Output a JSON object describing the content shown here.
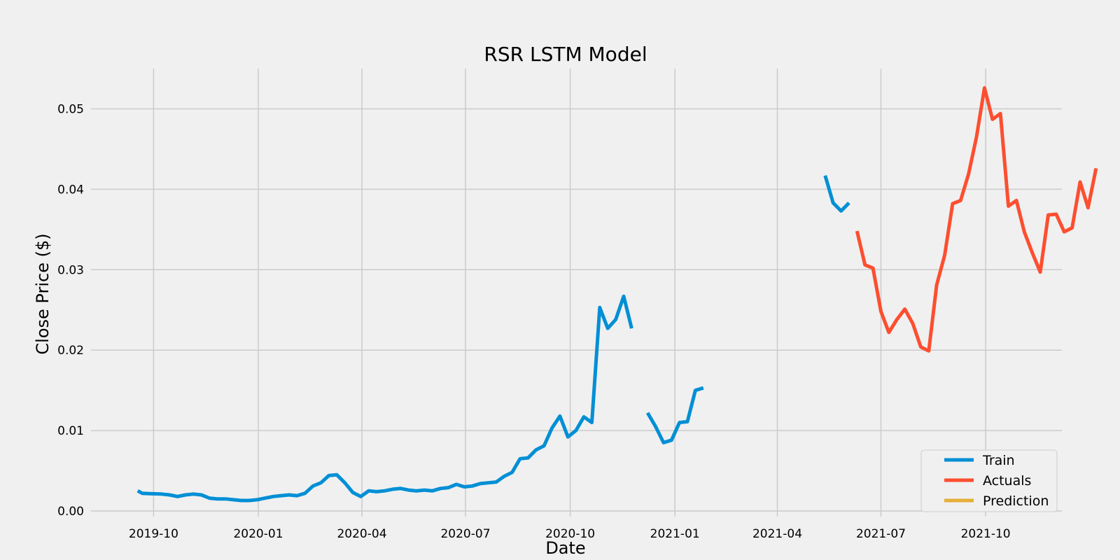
{
  "chart_data": {
    "type": "line",
    "title": "RSR LSTM Model",
    "xlabel": "Date",
    "ylabel": "Close Price ($)",
    "xlim": [
      "2019-08-07",
      "2021-12-07"
    ],
    "ylim": [
      -0.0007,
      0.055
    ],
    "x_ticks": [
      "2019-10-01",
      "2020-01-01",
      "2020-04-01",
      "2020-07-01",
      "2020-10-01",
      "2021-01-01",
      "2021-04-01",
      "2021-07-01",
      "2021-10-01"
    ],
    "x_tick_labels": [
      "2019-10",
      "2020-01",
      "2020-04",
      "2020-07",
      "2020-10",
      "2021-01",
      "2021-04",
      "2021-07",
      "2021-10"
    ],
    "y_ticks": [
      0.0,
      0.01,
      0.02,
      0.03,
      0.04,
      0.05
    ],
    "y_tick_labels": [
      "0.00",
      "0.01",
      "0.02",
      "0.03",
      "0.04",
      "0.05"
    ],
    "grid": true,
    "legend_position": "bottom-right",
    "series": [
      {
        "name": "Train",
        "color": "#008fd5",
        "segments": [
          [
            [
              "2019-09-17",
              0.0025
            ],
            [
              "2019-09-21",
              0.0022
            ],
            [
              "2019-09-28",
              0.00215
            ],
            [
              "2019-10-08",
              0.0021
            ],
            [
              "2019-10-15",
              0.002
            ],
            [
              "2019-10-22",
              0.0018
            ],
            [
              "2019-10-29",
              0.002
            ],
            [
              "2019-11-05",
              0.0021
            ],
            [
              "2019-11-12",
              0.002
            ],
            [
              "2019-11-19",
              0.0016
            ],
            [
              "2019-11-26",
              0.0015
            ],
            [
              "2019-12-03",
              0.0015
            ],
            [
              "2019-12-10",
              0.0014
            ],
            [
              "2019-12-17",
              0.0013
            ],
            [
              "2019-12-24",
              0.0013
            ],
            [
              "2019-12-31",
              0.0014
            ],
            [
              "2020-01-07",
              0.0016
            ],
            [
              "2020-01-14",
              0.0018
            ],
            [
              "2020-01-21",
              0.0019
            ],
            [
              "2020-01-28",
              0.002
            ],
            [
              "2020-02-04",
              0.0019
            ],
            [
              "2020-02-11",
              0.0022
            ],
            [
              "2020-02-18",
              0.0031
            ],
            [
              "2020-02-25",
              0.0035
            ],
            [
              "2020-03-03",
              0.0044
            ],
            [
              "2020-03-10",
              0.0045
            ],
            [
              "2020-03-17",
              0.0035
            ],
            [
              "2020-03-24",
              0.0023
            ],
            [
              "2020-03-31",
              0.0018
            ],
            [
              "2020-04-07",
              0.0025
            ],
            [
              "2020-04-14",
              0.0024
            ],
            [
              "2020-04-21",
              0.0025
            ],
            [
              "2020-04-28",
              0.0027
            ],
            [
              "2020-05-05",
              0.0028
            ],
            [
              "2020-05-12",
              0.0026
            ],
            [
              "2020-05-19",
              0.0025
            ],
            [
              "2020-05-26",
              0.0026
            ],
            [
              "2020-06-02",
              0.0025
            ],
            [
              "2020-06-09",
              0.0028
            ],
            [
              "2020-06-16",
              0.0029
            ],
            [
              "2020-06-23",
              0.0033
            ],
            [
              "2020-06-30",
              0.003
            ],
            [
              "2020-07-07",
              0.0031
            ],
            [
              "2020-07-14",
              0.0034
            ],
            [
              "2020-07-21",
              0.0035
            ],
            [
              "2020-07-28",
              0.0036
            ],
            [
              "2020-08-04",
              0.0043
            ],
            [
              "2020-08-11",
              0.0048
            ],
            [
              "2020-08-18",
              0.0065
            ],
            [
              "2020-08-25",
              0.0066
            ],
            [
              "2020-09-01",
              0.0076
            ],
            [
              "2020-09-08",
              0.0081
            ],
            [
              "2020-09-15",
              0.0103
            ],
            [
              "2020-09-22",
              0.0118
            ],
            [
              "2020-09-29",
              0.0092
            ],
            [
              "2020-10-06",
              0.01
            ],
            [
              "2020-10-13",
              0.0117
            ],
            [
              "2020-10-20",
              0.011
            ],
            [
              "2020-10-27",
              0.0253
            ],
            [
              "2020-11-03",
              0.0227
            ],
            [
              "2020-11-10",
              0.0238
            ],
            [
              "2020-11-17",
              0.0267
            ],
            [
              "2020-11-24",
              0.0227
            ]
          ],
          [
            [
              "2020-12-08",
              0.0122
            ],
            [
              "2020-12-15",
              0.0105
            ],
            [
              "2020-12-22",
              0.0085
            ],
            [
              "2020-12-29",
              0.0088
            ],
            [
              "2021-01-05",
              0.011
            ],
            [
              "2021-01-12",
              0.0111
            ],
            [
              "2021-01-19",
              0.015
            ],
            [
              "2021-01-26",
              0.0153
            ]
          ],
          [
            [
              "2021-05-13",
              0.0417
            ],
            [
              "2021-05-20",
              0.0383
            ],
            [
              "2021-05-27",
              0.0373
            ],
            [
              "2021-06-03",
              0.0383
            ]
          ]
        ]
      },
      {
        "name": "Actuals",
        "color": "#fc4f30",
        "segments": [
          [
            [
              "2021-06-10",
              0.0348
            ],
            [
              "2021-06-17",
              0.0306
            ],
            [
              "2021-06-24",
              0.0302
            ],
            [
              "2021-07-01",
              0.0248
            ],
            [
              "2021-07-08",
              0.0222
            ],
            [
              "2021-07-15",
              0.0238
            ],
            [
              "2021-07-22",
              0.0251
            ],
            [
              "2021-07-29",
              0.0233
            ],
            [
              "2021-08-05",
              0.0204
            ],
            [
              "2021-08-12",
              0.0199
            ],
            [
              "2021-08-19",
              0.0281
            ],
            [
              "2021-08-26",
              0.0318
            ],
            [
              "2021-09-02",
              0.0382
            ],
            [
              "2021-09-09",
              0.0386
            ],
            [
              "2021-09-16",
              0.0419
            ],
            [
              "2021-09-23",
              0.0465
            ],
            [
              "2021-09-30",
              0.0526
            ],
            [
              "2021-10-07",
              0.0487
            ],
            [
              "2021-10-14",
              0.0494
            ],
            [
              "2021-10-21",
              0.0379
            ],
            [
              "2021-10-28",
              0.0386
            ],
            [
              "2021-11-04",
              0.0347
            ],
            [
              "2021-11-11",
              0.0321
            ],
            [
              "2021-11-18",
              0.0297
            ],
            [
              "2021-11-25",
              0.0368
            ],
            [
              "2021-12-02",
              0.0369
            ],
            [
              "2021-12-09",
              0.0347
            ],
            [
              "2021-12-16",
              0.0352
            ],
            [
              "2021-12-23",
              0.0409
            ],
            [
              "2021-12-30",
              0.0377
            ],
            [
              "2022-01-06",
              0.0426
            ]
          ]
        ]
      },
      {
        "name": "Prediction",
        "color": "#e5ae38",
        "segments": []
      }
    ]
  }
}
